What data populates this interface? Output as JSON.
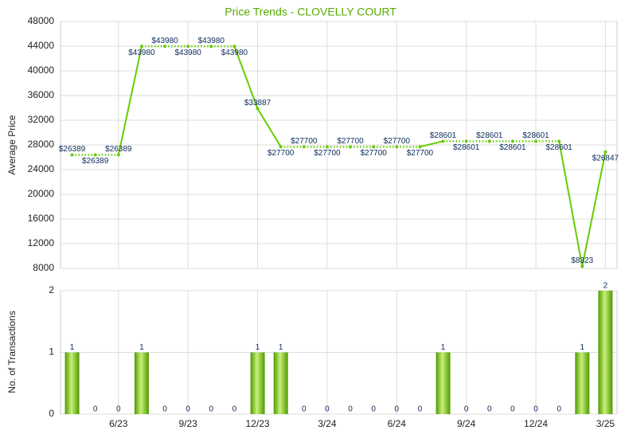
{
  "chart_data": [
    {
      "type": "line",
      "title": "Price Trends - CLOVELLY COURT",
      "y_label": "Average Price",
      "color": "#66cc00",
      "values": [
        26389,
        26389,
        26389,
        43980,
        43980,
        43980,
        43980,
        43980,
        33887,
        27700,
        27700,
        27700,
        27700,
        27700,
        27700,
        27700,
        28601,
        28601,
        28601,
        28601,
        28601,
        28601,
        8323,
        26847
      ],
      "value_labels": [
        "$26389",
        "$26389",
        "$26389",
        "$43980",
        "$43980",
        "$43980",
        "$43980",
        "$43980",
        "$33887",
        "$27700",
        "$27700",
        "$27700",
        "$27700",
        "$27700",
        "$27700",
        "$27700",
        "$28601",
        "$28601",
        "$28601",
        "$28601",
        "$28601",
        "$28601",
        "$8323",
        "$26847"
      ],
      "ylim": [
        8000,
        48000
      ],
      "yticks": [
        8000,
        12000,
        16000,
        20000,
        24000,
        28000,
        32000,
        36000,
        40000,
        44000,
        48000
      ],
      "grid": true
    },
    {
      "type": "bar",
      "y_label": "No. of Transactions",
      "color": "#66bb11",
      "categories": [
        null,
        null,
        "6/23",
        null,
        null,
        "9/23",
        null,
        null,
        "12/23",
        null,
        null,
        "3/24",
        null,
        null,
        "6/24",
        null,
        null,
        "9/24",
        null,
        null,
        "12/24",
        null,
        null,
        "3/25"
      ],
      "values": [
        1,
        0,
        0,
        1,
        0,
        0,
        0,
        0,
        1,
        1,
        0,
        0,
        0,
        0,
        0,
        0,
        1,
        0,
        0,
        0,
        0,
        0,
        1,
        2
      ],
      "ylim": [
        0,
        2
      ],
      "yticks": [
        0,
        1,
        2
      ],
      "grid": true
    }
  ]
}
